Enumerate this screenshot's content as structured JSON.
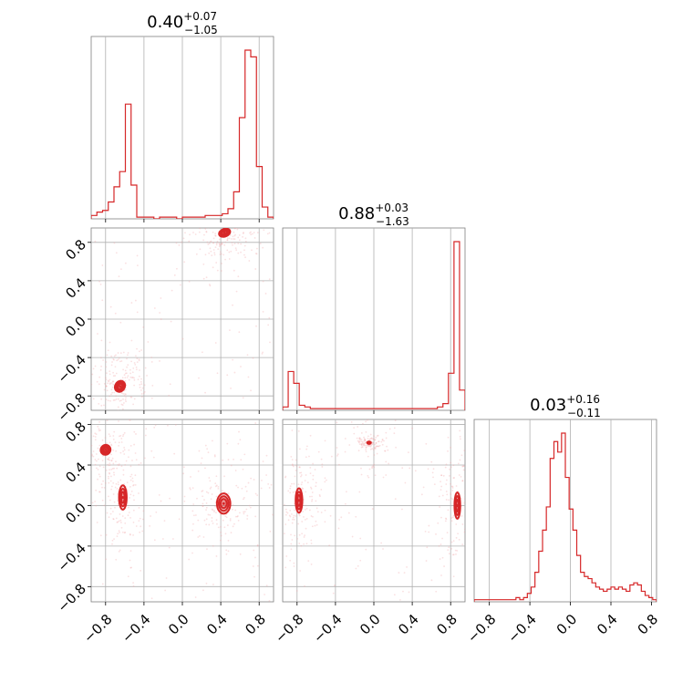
{
  "chart_data": {
    "type": "corner",
    "color": "#d62728",
    "ticks": {
      "values": [
        -0.8,
        -0.4,
        0.0,
        0.4,
        0.8
      ],
      "labels": [
        "−0.8",
        "−0.4",
        "0.0",
        "0.4",
        "0.8"
      ]
    },
    "parameters": [
      {
        "range": [
          -0.95,
          0.95
        ],
        "median": "0.40",
        "plus": "+0.07",
        "minus": "−1.05",
        "hist_heights": [
          2,
          4,
          5,
          10,
          19,
          28,
          68,
          20,
          1,
          1,
          1,
          0,
          1,
          1,
          1,
          0,
          1,
          1,
          1,
          1,
          2,
          2,
          2,
          3,
          6,
          16,
          60,
          100,
          96,
          31,
          7,
          1
        ]
      },
      {
        "range": [
          -0.95,
          0.95
        ],
        "median": "0.88",
        "plus": "+0.03",
        "minus": "−1.63",
        "hist_heights": [
          2,
          23,
          16,
          3,
          2,
          1,
          1,
          1,
          1,
          1,
          1,
          1,
          1,
          1,
          1,
          1,
          1,
          1,
          1,
          1,
          1,
          1,
          1,
          1,
          1,
          1,
          1,
          1,
          2,
          4,
          22,
          100,
          12
        ]
      },
      {
        "range": [
          -0.95,
          0.85
        ],
        "median": "0.03",
        "plus": "+0.16",
        "minus": "−0.11",
        "hist_heights": [
          1,
          1,
          1,
          1,
          1,
          1,
          1,
          1,
          1,
          1,
          1,
          2,
          1,
          2,
          4,
          7,
          14,
          24,
          34,
          45,
          68,
          76,
          71,
          80,
          59,
          44,
          34,
          22,
          14,
          12,
          11,
          9,
          7,
          6,
          5,
          6,
          7,
          6,
          7,
          6,
          5,
          8,
          9,
          8,
          5,
          3,
          2,
          1
        ]
      }
    ],
    "joint": [
      {
        "x": 0,
        "y": 1,
        "modes": [
          {
            "cx": 0.44,
            "cy": 0.9,
            "sx": 0.06,
            "sy": 0.04,
            "rot": -20
          },
          {
            "cx": -0.65,
            "cy": -0.7,
            "sx": 0.05,
            "sy": 0.06,
            "rot": 35
          }
        ]
      },
      {
        "x": 0,
        "y": 2,
        "modes": [
          {
            "cx": -0.62,
            "cy": 0.08,
            "sx": 0.04,
            "sy": 0.12,
            "rot": 0
          },
          {
            "cx": 0.43,
            "cy": 0.02,
            "sx": 0.07,
            "sy": 0.1,
            "rot": 0
          },
          {
            "cx": -0.8,
            "cy": 0.55,
            "sx": 0.05,
            "sy": 0.05,
            "rot": 45
          }
        ]
      },
      {
        "x": 1,
        "y": 2,
        "modes": [
          {
            "cx": -0.78,
            "cy": 0.05,
            "sx": 0.035,
            "sy": 0.12,
            "rot": 0
          },
          {
            "cx": 0.87,
            "cy": 0.0,
            "sx": 0.03,
            "sy": 0.13,
            "rot": 0
          },
          {
            "cx": -0.05,
            "cy": 0.62,
            "sx": 0.02,
            "sy": 0.012,
            "rot": 0
          }
        ]
      }
    ]
  }
}
